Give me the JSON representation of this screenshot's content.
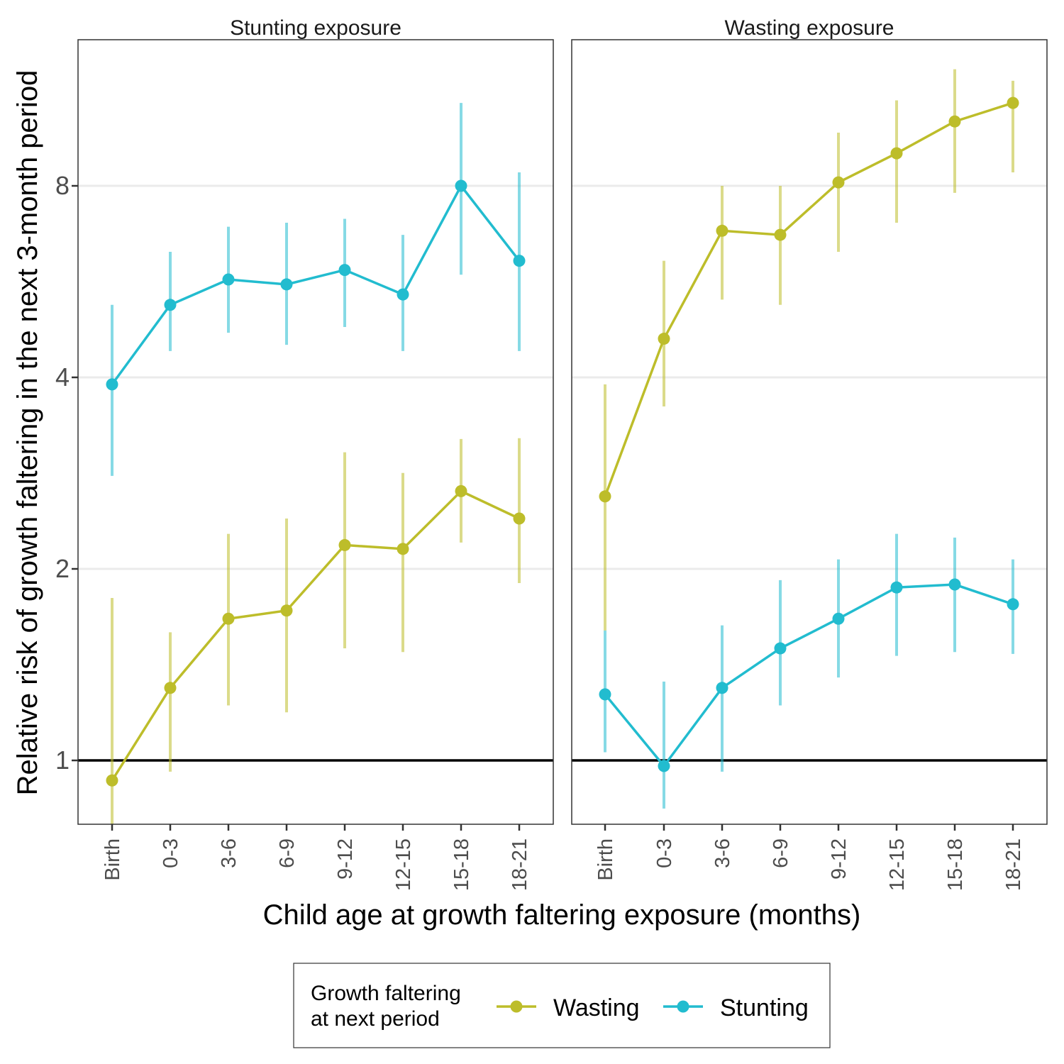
{
  "chart_data": {
    "type": "line",
    "ylabel": "Relative risk of growth faltering in the next 3-month period",
    "xlabel": "Child age at growth faltering exposure (months)",
    "y_scale": "log2",
    "ylim": [
      0.72,
      11.7
    ],
    "yticks": [
      1,
      2,
      4,
      8
    ],
    "reference_line": 1,
    "grid": "horizontal major",
    "categories": [
      "Birth",
      "0-3",
      "3-6",
      "6-9",
      "9-12",
      "12-15",
      "15-18",
      "18-21"
    ],
    "legend": {
      "title_lines": [
        "Growth faltering",
        "at next period"
      ],
      "position": "bottom",
      "items": [
        "Wasting",
        "Stunting"
      ]
    },
    "colors": {
      "Wasting": "#bdbd2a",
      "Stunting": "#22bccf"
    },
    "panels": [
      {
        "title": "Stunting exposure",
        "series": [
          {
            "name": "Wasting",
            "values": [
              0.93,
              1.3,
              1.67,
              1.72,
              2.18,
              2.15,
              2.65,
              2.4
            ],
            "lower": [
              0.72,
              0.96,
              1.22,
              1.19,
              1.5,
              1.48,
              2.2,
              1.9
            ],
            "upper": [
              1.8,
              1.59,
              2.27,
              2.4,
              3.05,
              2.83,
              3.2,
              3.21
            ]
          },
          {
            "name": "Stunting",
            "values": [
              3.9,
              5.2,
              5.7,
              5.6,
              5.9,
              5.4,
              8.0,
              6.1
            ],
            "lower": [
              2.8,
              4.4,
              4.7,
              4.5,
              4.8,
              4.4,
              5.8,
              4.4
            ],
            "upper": [
              5.2,
              6.3,
              6.9,
              7.0,
              7.1,
              6.7,
              10.8,
              8.4
            ]
          }
        ]
      },
      {
        "title": "Wasting exposure",
        "series": [
          {
            "name": "Wasting",
            "values": [
              2.6,
              4.6,
              6.8,
              6.7,
              8.1,
              9.0,
              10.1,
              10.8
            ],
            "lower": [
              1.6,
              3.6,
              5.3,
              5.2,
              6.3,
              7.0,
              7.8,
              8.4
            ],
            "upper": [
              3.9,
              6.1,
              8.0,
              8.0,
              9.7,
              10.9,
              12.2,
              11.7
            ]
          },
          {
            "name": "Stunting",
            "values": [
              1.27,
              0.98,
              1.3,
              1.5,
              1.67,
              1.87,
              1.89,
              1.76
            ],
            "lower": [
              1.03,
              0.84,
              0.96,
              1.22,
              1.35,
              1.46,
              1.48,
              1.47
            ],
            "upper": [
              1.6,
              1.33,
              1.63,
              1.92,
              2.07,
              2.27,
              2.24,
              2.07
            ]
          }
        ]
      }
    ]
  }
}
